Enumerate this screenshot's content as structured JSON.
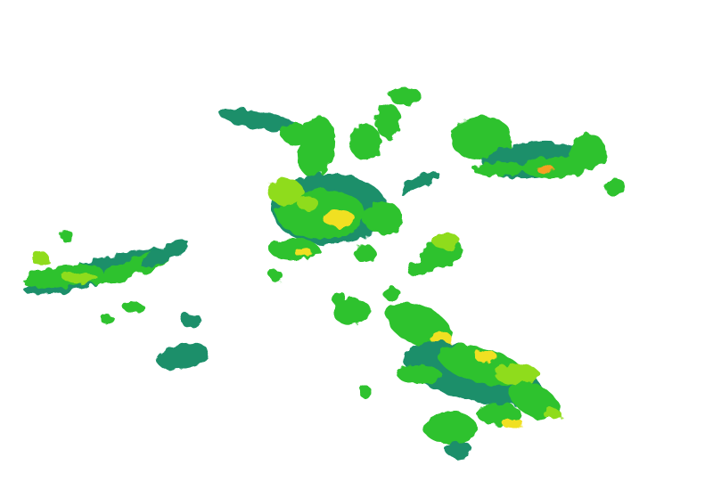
{
  "legend": {
    "colors": {
      "light": "#1f6fa0",
      "low": "#1a8f6a",
      "moderate": "#2ec22e",
      "medium": "#8fdc1a",
      "heavy": "#f0e020",
      "intense": "#f5a020"
    }
  }
}
